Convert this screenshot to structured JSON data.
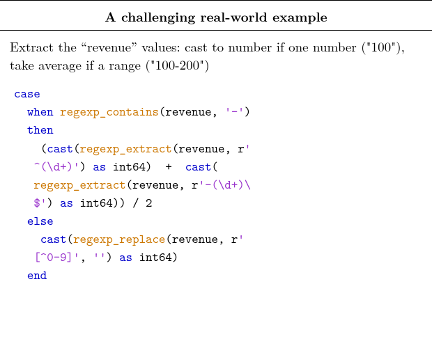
{
  "header": {
    "title": "A challenging real-world example"
  },
  "description": {
    "text": "Extract the “revenue” values: cast to number if one number (\"100\"), take average if a range (\"100-200\")"
  },
  "code": {
    "type": "sql-snippet",
    "colors": {
      "keyword": "#0000cc",
      "function": "#cc7700",
      "string": "#9933cc",
      "text": "#000000",
      "background": "#ffffff"
    },
    "font_family": "Latin Modern Mono",
    "font_size_pt": 14,
    "tokens": [
      {
        "t": "case",
        "c": "kw-blue",
        "indent": 0,
        "nl": true
      },
      {
        "t": "when",
        "c": "kw-blue",
        "indent": 1,
        "nl": false
      },
      {
        "t": " ",
        "c": null
      },
      {
        "t": "regexp_contains",
        "c": "fn-orange"
      },
      {
        "t": "(revenue, ",
        "c": null
      },
      {
        "t": "'-'",
        "c": "str-purple"
      },
      {
        "t": ")",
        "c": null,
        "nl": true
      },
      {
        "t": "then",
        "c": "kw-blue",
        "indent": 1,
        "nl": true
      },
      {
        "t": "(",
        "c": null,
        "indent": 2
      },
      {
        "t": "cast",
        "c": "kw-blue"
      },
      {
        "t": "(",
        "c": null
      },
      {
        "t": "regexp_extract",
        "c": "fn-orange"
      },
      {
        "t": "(revenue, r",
        "c": null
      },
      {
        "t": "'^(\\d+)'",
        "c": "str-purple"
      },
      {
        "t": ") ",
        "c": null
      },
      {
        "t": "as",
        "c": "kw-blue"
      },
      {
        "t": " int64)  +  ",
        "c": null
      },
      {
        "t": "cast",
        "c": "kw-blue"
      },
      {
        "t": "(",
        "c": null
      },
      {
        "t": "regexp_extract",
        "c": "fn-orange"
      },
      {
        "t": "(revenue, r",
        "c": null
      },
      {
        "t": "'-(\\d+)\\$'",
        "c": "str-purple"
      },
      {
        "t": ") ",
        "c": null
      },
      {
        "t": "as",
        "c": "kw-blue"
      },
      {
        "t": " int64)) / 2",
        "c": null,
        "nl": true
      },
      {
        "t": "else",
        "c": "kw-blue",
        "indent": 1,
        "nl": true
      },
      {
        "t": "cast",
        "c": "kw-blue",
        "indent": 2
      },
      {
        "t": "(",
        "c": null
      },
      {
        "t": "regexp_replace",
        "c": "fn-orange"
      },
      {
        "t": "(revenue, r",
        "c": null
      },
      {
        "t": "'[^0-9]'",
        "c": "str-purple"
      },
      {
        "t": ", ",
        "c": null
      },
      {
        "t": "''",
        "c": "str-purple"
      },
      {
        "t": ") ",
        "c": null
      },
      {
        "t": "as",
        "c": "kw-blue"
      },
      {
        "t": " int64)",
        "c": null,
        "nl": true
      },
      {
        "t": "end",
        "c": "kw-blue",
        "indent": 1
      }
    ]
  }
}
